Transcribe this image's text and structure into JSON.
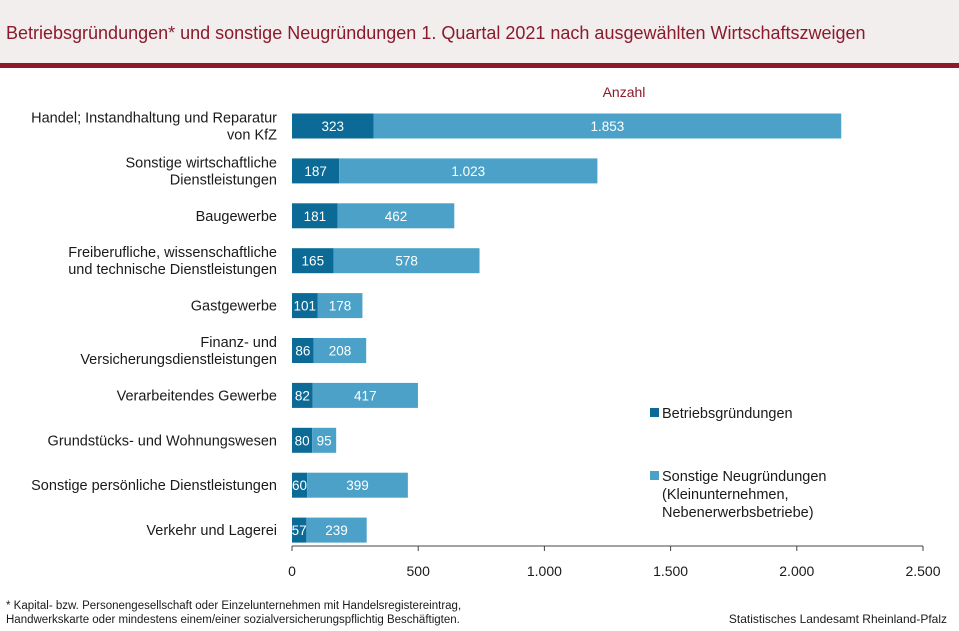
{
  "header": {
    "title": "Betriebsgründungen* und sonstige Neugründungen 1. Quartal 2021 nach ausgewählten Wirtschaftszweigen"
  },
  "footer": {
    "footnote_line1": "* Kapital- bzw. Personengesellschaft  oder Einzelunternehmen  mit  Handelsregistereintrag,",
    "footnote_line2": "Handwerkskarte  oder mindestens einem/einer sozialversicherungspflichtig  Beschäftigten.",
    "source": "Statistisches Landesamt Rheinland-Pfalz"
  },
  "colors": {
    "betriebsgruendungen": "#0b6a96",
    "sonstige": "#4ba1c7",
    "accent": "#8b1a2b"
  },
  "chart_data": {
    "type": "bar",
    "orientation": "horizontal",
    "stacked": true,
    "unit_label": "Anzahl",
    "categories": [
      [
        "Handel; Instandhaltung und Reparatur",
        "von KfZ"
      ],
      [
        "Sonstige wirtschaftliche",
        "Dienstleistungen"
      ],
      [
        "Baugewerbe"
      ],
      [
        "Freiberufliche, wissenschaftliche",
        "und technische Dienstleistungen"
      ],
      [
        "Gastgewerbe"
      ],
      [
        "Finanz- und",
        "Versicherungsdienstleistungen"
      ],
      [
        "Verarbeitendes Gewerbe"
      ],
      [
        "Grundstücks- und Wohnungswesen"
      ],
      [
        "Sonstige persönliche Dienstleistungen"
      ],
      [
        "Verkehr und Lagerei"
      ]
    ],
    "series": [
      {
        "name": "Betriebsgründungen",
        "values": [
          323,
          187,
          181,
          165,
          101,
          86,
          82,
          80,
          60,
          57
        ],
        "value_labels": [
          "323",
          "187",
          "181",
          "165",
          "101",
          "86",
          "82",
          "80",
          "60",
          "57"
        ]
      },
      {
        "name": [
          "Sonstige Neugründungen",
          "(Kleinunternehmen,",
          "Nebenerwerbsbetriebe)"
        ],
        "values": [
          1853,
          1023,
          462,
          578,
          178,
          208,
          417,
          95,
          399,
          239
        ],
        "value_labels": [
          "1.853",
          "1.023",
          "462",
          "578",
          "178",
          "208",
          "417",
          "95",
          "399",
          "239"
        ]
      }
    ],
    "xlim": [
      0,
      2500
    ],
    "xticks": [
      0,
      500,
      1000,
      1500,
      2000,
      2500
    ],
    "xtick_labels": [
      "0",
      "500",
      "1.000",
      "1.500",
      "2.000",
      "2.500"
    ],
    "grid": false,
    "legend_position": "right"
  }
}
